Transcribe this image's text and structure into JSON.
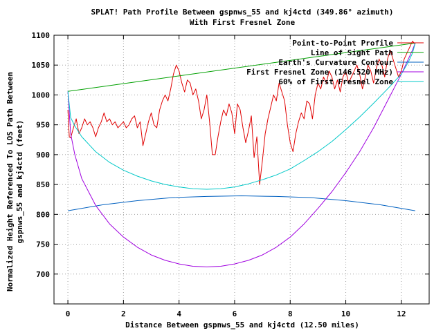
{
  "chart_data": {
    "type": "line",
    "title_line1": "SPLAT! Path Profile Between gspnws_55 and kj4ctd (349.86° azimuth)",
    "title_line2": "With First Fresnel Zone",
    "xlabel": "Distance Between gspnws_55 and kj4ctd (12.50 miles)",
    "ylabel_line1": "Normalized Height Referenced To LOS Path Between",
    "ylabel_line2": "gspnws_55 and kj4ctd (feet)",
    "xlim": [
      -0.5,
      13.0
    ],
    "ylim": [
      650,
      1100
    ],
    "xticks": [
      "0",
      "2",
      "4",
      "6",
      "8",
      "10",
      "12"
    ],
    "yticks": [
      "700",
      "750",
      "800",
      "850",
      "900",
      "950",
      "1000",
      "1050",
      "1100"
    ],
    "grid": true,
    "legend_position": "top-right",
    "series": [
      {
        "name": "Point-to-Point Profile",
        "color": "#e00000",
        "x": [
          0.0,
          0.05,
          0.1,
          0.2,
          0.3,
          0.4,
          0.5,
          0.6,
          0.7,
          0.8,
          0.9,
          1.0,
          1.1,
          1.2,
          1.3,
          1.4,
          1.5,
          1.6,
          1.7,
          1.8,
          1.9,
          2.0,
          2.1,
          2.2,
          2.3,
          2.4,
          2.5,
          2.6,
          2.7,
          2.8,
          2.9,
          3.0,
          3.1,
          3.2,
          3.3,
          3.4,
          3.5,
          3.6,
          3.7,
          3.8,
          3.9,
          4.0,
          4.1,
          4.2,
          4.3,
          4.4,
          4.5,
          4.6,
          4.7,
          4.8,
          4.9,
          5.0,
          5.1,
          5.2,
          5.3,
          5.4,
          5.5,
          5.6,
          5.7,
          5.8,
          5.9,
          6.0,
          6.1,
          6.2,
          6.3,
          6.4,
          6.5,
          6.6,
          6.7,
          6.8,
          6.9,
          7.0,
          7.1,
          7.2,
          7.3,
          7.4,
          7.5,
          7.6,
          7.7,
          7.8,
          7.9,
          8.0,
          8.1,
          8.2,
          8.3,
          8.4,
          8.5,
          8.6,
          8.7,
          8.8,
          8.9,
          9.0,
          9.1,
          9.2,
          9.3,
          9.4,
          9.5,
          9.6,
          9.7,
          9.8,
          9.9,
          10.0,
          10.1,
          10.2,
          10.3,
          10.4,
          10.5,
          10.6,
          10.7,
          10.8,
          10.9,
          11.0,
          11.1,
          11.2,
          11.3,
          11.4,
          11.5,
          11.6,
          11.7,
          11.8,
          11.9,
          12.0,
          12.1,
          12.2,
          12.3,
          12.4,
          12.5
        ],
        "y": [
          975,
          930,
          928,
          945,
          960,
          935,
          945,
          960,
          950,
          955,
          945,
          930,
          945,
          955,
          970,
          955,
          960,
          950,
          955,
          945,
          950,
          955,
          945,
          950,
          960,
          965,
          945,
          955,
          915,
          935,
          955,
          970,
          950,
          945,
          975,
          990,
          1000,
          990,
          1010,
          1035,
          1050,
          1040,
          1020,
          1005,
          1025,
          1020,
          1000,
          1010,
          990,
          960,
          975,
          1000,
          955,
          900,
          900,
          930,
          955,
          975,
          965,
          985,
          970,
          935,
          985,
          975,
          945,
          920,
          940,
          965,
          895,
          930,
          850,
          890,
          935,
          960,
          980,
          1000,
          990,
          1020,
          1005,
          990,
          950,
          920,
          905,
          935,
          955,
          970,
          960,
          990,
          985,
          960,
          1000,
          1020,
          1010,
          1030,
          1020,
          1040,
          1030,
          1010,
          1025,
          1005,
          1030,
          1040,
          1020,
          1030,
          1040,
          1050,
          1035,
          1010,
          1030,
          1050,
          1040,
          1020,
          1045,
          1060,
          1050,
          1030,
          1060,
          1075,
          1060,
          1045,
          1030,
          1040,
          1060,
          1070,
          1080,
          1090,
          1085
        ]
      },
      {
        "name": "Line of Sight Path",
        "color": "#00a000",
        "x": [
          0.0,
          12.5
        ],
        "y": [
          1006,
          1087
        ]
      },
      {
        "name": "Earth's Curvature Contour",
        "color": "#0060c0",
        "x": [
          0.0,
          1.25,
          2.5,
          3.75,
          5.0,
          6.25,
          7.5,
          8.75,
          10.0,
          11.25,
          12.5
        ],
        "y": [
          806,
          816,
          823,
          828,
          830,
          831,
          830,
          828,
          823,
          816,
          806
        ]
      },
      {
        "name": "First Fresnel Zone (146.520 MHz)",
        "color": "#a000e0",
        "x": [
          0.0,
          0.1,
          0.25,
          0.5,
          1.0,
          1.5,
          2.0,
          2.5,
          3.0,
          3.5,
          4.0,
          4.5,
          5.0,
          5.5,
          6.0,
          6.5,
          7.0,
          7.5,
          8.0,
          8.5,
          9.0,
          9.5,
          10.0,
          10.5,
          11.0,
          11.5,
          12.0,
          12.25,
          12.4,
          12.5
        ],
        "y": [
          1006,
          935,
          900,
          860,
          815,
          784,
          762,
          745,
          732,
          723,
          717,
          713,
          712,
          713,
          717,
          723,
          732,
          745,
          762,
          784,
          810,
          838,
          870,
          905,
          945,
          990,
          1035,
          1060,
          1075,
          1087
        ]
      },
      {
        "name": "60% of First Fresnel Zone",
        "color": "#00c8c8",
        "x": [
          0.0,
          0.1,
          0.25,
          0.5,
          1.0,
          1.5,
          2.0,
          2.5,
          3.0,
          3.5,
          4.0,
          4.5,
          5.0,
          5.5,
          6.0,
          6.5,
          7.0,
          7.5,
          8.0,
          8.5,
          9.0,
          9.5,
          10.0,
          10.5,
          11.0,
          11.5,
          12.0,
          12.25,
          12.4,
          12.5
        ],
        "y": [
          1006,
          962,
          948,
          930,
          905,
          887,
          874,
          864,
          856,
          850,
          846,
          843,
          842,
          843,
          846,
          851,
          858,
          866,
          876,
          890,
          905,
          922,
          942,
          963,
          986,
          1010,
          1035,
          1055,
          1070,
          1087
        ]
      }
    ]
  }
}
